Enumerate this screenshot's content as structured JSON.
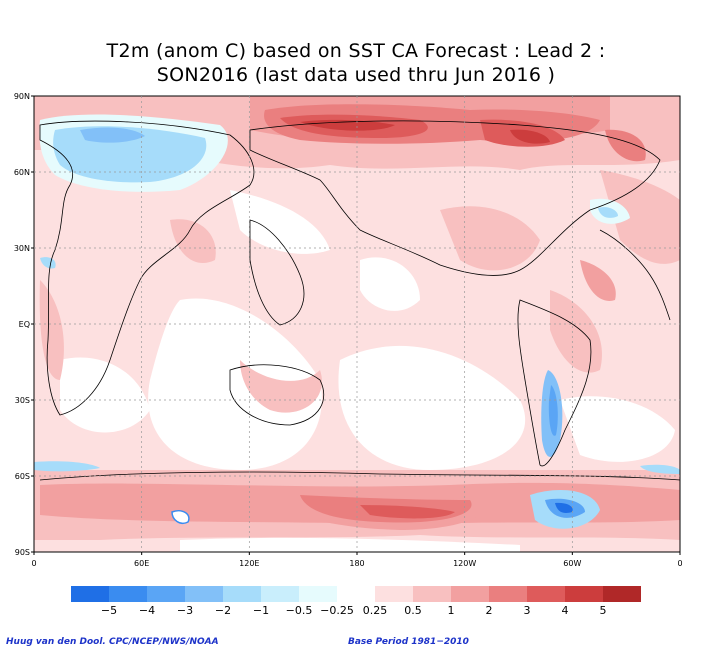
{
  "title_line1": "T2m (anom C) based on SST CA Forecast : Lead 2 :",
  "title_line2": "SON2016 (last data used thru Jun 2016 )",
  "lat_labels": [
    "90N",
    "60N",
    "30N",
    "EQ",
    "30S",
    "60S",
    "90S"
  ],
  "lon_labels": [
    "0",
    "60E",
    "120E",
    "180",
    "120W",
    "60W",
    "0"
  ],
  "legend": {
    "colors": [
      "#1f6fe6",
      "#3a8cf0",
      "#5aa5f5",
      "#82c0f8",
      "#a6dcfa",
      "#c9eefc",
      "#e6fbfd",
      "#ffffff",
      "#fde0e0",
      "#f8c0c0",
      "#f2a0a0",
      "#ea7f7f",
      "#de5b5b",
      "#cc3d3d",
      "#b02828"
    ],
    "labels": [
      "−5",
      "−4",
      "−3",
      "−2",
      "−1",
      "−0.5",
      "−0.25",
      "0.25",
      "0.5",
      "1",
      "2",
      "3",
      "4",
      "5"
    ]
  },
  "credit_left": "Huug van den Dool. CPC/NCEP/NWS/NOAA",
  "credit_right": "Base Period 1981−2010"
}
